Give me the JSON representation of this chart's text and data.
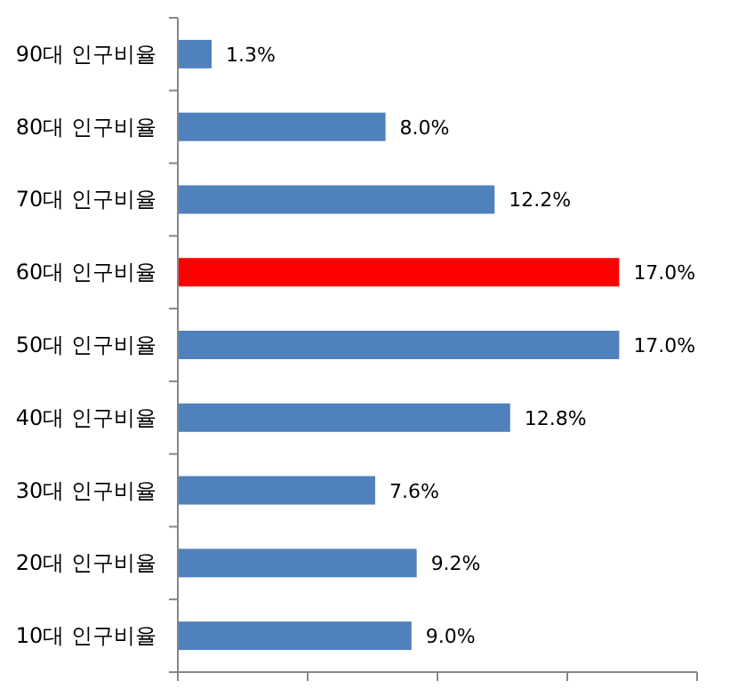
{
  "chart_data": {
    "type": "bar",
    "orientation": "horizontal",
    "categories": [
      "90대 인구비율",
      "80대 인구비율",
      "70대 인구비율",
      "60대 인구비율",
      "50대 인구비율",
      "40대 인구비율",
      "30대 인구비율",
      "20대 인구비율",
      "10대 인구비율"
    ],
    "values": [
      1.3,
      8.0,
      12.2,
      17.0,
      17.0,
      12.8,
      7.6,
      9.2,
      9.0
    ],
    "colors": [
      "#4f81bd",
      "#4f81bd",
      "#4f81bd",
      "#ff0000",
      "#4f81bd",
      "#4f81bd",
      "#4f81bd",
      "#4f81bd",
      "#4f81bd"
    ],
    "value_labels": [
      "1.3%",
      "8.0%",
      "12.2%",
      "17.0%",
      "17.0%",
      "12.8%",
      "7.6%",
      "9.2%",
      "9.0%"
    ],
    "xlim": [
      0,
      20
    ],
    "xticks": [
      {
        "value": 0,
        "label": null
      },
      {
        "value": 5,
        "label": null
      },
      {
        "value": 10,
        "label": null
      },
      {
        "value": 15,
        "label": null
      },
      {
        "value": 20,
        "label": null
      }
    ],
    "tick_labels": "y"
  }
}
